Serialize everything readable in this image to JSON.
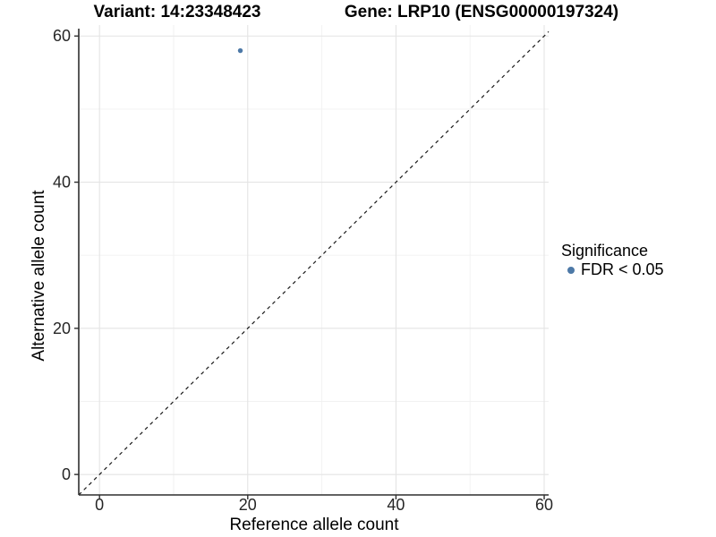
{
  "header": {
    "variant_title": "Variant: 14:23348423",
    "gene_title": "Gene: LRP10 (ENSG00000197324)"
  },
  "legend": {
    "title": "Significance",
    "items": [
      {
        "label": "FDR < 0.05",
        "marker": "dot-icon",
        "color": "#4d79a7"
      }
    ]
  },
  "colors": {
    "background": "#ffffff",
    "point": "#4d79a7",
    "grid_major": "#e4e4e4",
    "grid_minor": "#f1f1f1",
    "axis_line": "#2f2f2f",
    "tick_label": "#262626",
    "identity_line": "#1a1a1a"
  },
  "chart_data": {
    "type": "scatter",
    "titles": {
      "left": "Variant: 14:23348423",
      "right": "Gene: LRP10 (ENSG00000197324)"
    },
    "xlabel": "Reference allele count",
    "ylabel": "Alternative allele count",
    "xlim": [
      -2.8,
      60.6
    ],
    "ylim": [
      -2.8,
      61.5
    ],
    "x_ticks": [
      0,
      20,
      40,
      60
    ],
    "y_ticks": [
      0,
      20,
      40,
      60
    ],
    "x_minor_ticks": [
      10,
      30,
      50
    ],
    "y_minor_ticks": [
      10,
      30,
      50
    ],
    "grid": "major+minor on white",
    "legend_position": "right",
    "identity_line": {
      "type": "y=x",
      "style": "dashed",
      "color": "#1a1a1a"
    },
    "series": [
      {
        "name": "FDR < 0.05",
        "color": "#4d79a7",
        "points": [
          [
            19,
            58
          ]
        ]
      }
    ]
  }
}
